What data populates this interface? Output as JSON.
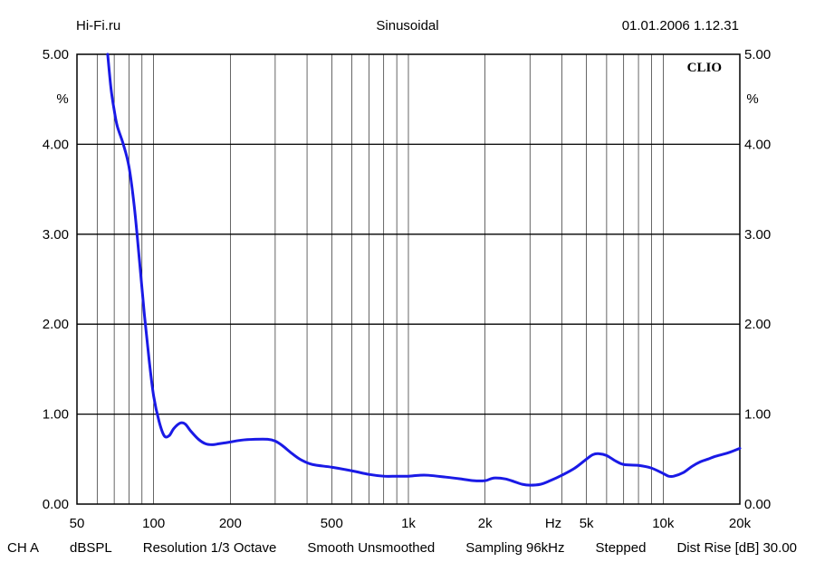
{
  "header": {
    "left": "Hi-Fi.ru",
    "center": "Sinusoidal",
    "right": "01.01.2006 1.12.31"
  },
  "logo_text": "CLIO",
  "footer": {
    "channel": "CH A",
    "unit": "dBSPL",
    "resolution": "Resolution 1/3 Octave",
    "smooth": "Smooth Unsmoothed",
    "sampling": "Sampling 96kHz",
    "mode": "Stepped",
    "dist_rise": "Dist Rise [dB] 30.00"
  },
  "colors": {
    "curve": "#1a1ae6",
    "grid": "#000000"
  },
  "chart_data": {
    "type": "line",
    "x_scale": "log",
    "xlim": [
      50,
      20000
    ],
    "ylim": [
      0,
      5
    ],
    "ylabel": "%",
    "xunit_label": "Hz",
    "grid": true,
    "y_ticks": [
      {
        "value": 0,
        "label": "0.00"
      },
      {
        "value": 1,
        "label": "1.00"
      },
      {
        "value": 2,
        "label": "2.00"
      },
      {
        "value": 3,
        "label": "3.00"
      },
      {
        "value": 4,
        "label": "4.00"
      },
      {
        "value": 5,
        "label": "5.00"
      }
    ],
    "x_ticks": [
      {
        "value": 50,
        "label": "50"
      },
      {
        "value": 100,
        "label": "100"
      },
      {
        "value": 200,
        "label": "200"
      },
      {
        "value": 500,
        "label": "500"
      },
      {
        "value": 1000,
        "label": "1k"
      },
      {
        "value": 2000,
        "label": "2k"
      },
      {
        "value": 5000,
        "label": "5k"
      },
      {
        "value": 10000,
        "label": "10k"
      },
      {
        "value": 20000,
        "label": "20k"
      }
    ],
    "series": [
      {
        "x": [
          66,
          68,
          70,
          72,
          76,
          80,
          84,
          88,
          92,
          96,
          100,
          105,
          110,
          115,
          120,
          127,
          133,
          140,
          150,
          160,
          170,
          180,
          190,
          200,
          220,
          250,
          280,
          300,
          320,
          350,
          380,
          420,
          500,
          600,
          700,
          800,
          900,
          1000,
          1100,
          1200,
          1400,
          1600,
          1800,
          2000,
          2100,
          2200,
          2400,
          2600,
          2800,
          3000,
          3300,
          3600,
          4000,
          4500,
          5000,
          5300,
          5600,
          6000,
          6500,
          7000,
          8000,
          9000,
          10000,
          10500,
          11000,
          12000,
          13000,
          14000,
          15000,
          16000,
          18000,
          20000
        ],
        "y": [
          5.0,
          4.62,
          4.38,
          4.2,
          4.0,
          3.75,
          3.3,
          2.7,
          2.1,
          1.6,
          1.2,
          0.92,
          0.76,
          0.76,
          0.84,
          0.9,
          0.89,
          0.81,
          0.72,
          0.67,
          0.66,
          0.67,
          0.68,
          0.69,
          0.71,
          0.72,
          0.72,
          0.7,
          0.65,
          0.56,
          0.49,
          0.44,
          0.41,
          0.37,
          0.33,
          0.31,
          0.31,
          0.31,
          0.32,
          0.32,
          0.3,
          0.28,
          0.26,
          0.26,
          0.28,
          0.29,
          0.28,
          0.25,
          0.22,
          0.21,
          0.22,
          0.26,
          0.32,
          0.4,
          0.5,
          0.55,
          0.56,
          0.54,
          0.48,
          0.44,
          0.43,
          0.4,
          0.34,
          0.31,
          0.31,
          0.35,
          0.42,
          0.47,
          0.5,
          0.53,
          0.57,
          0.62
        ]
      }
    ]
  }
}
